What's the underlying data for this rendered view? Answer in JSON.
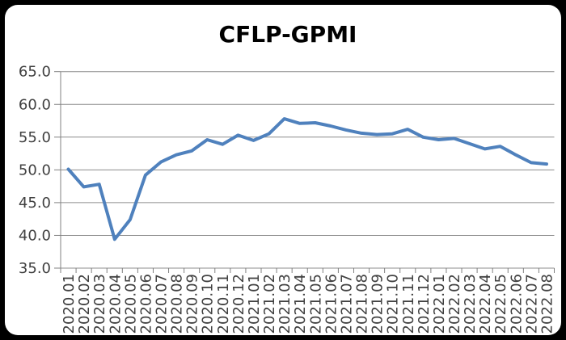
{
  "window": {
    "background_color": "#000000",
    "card_color": "#ffffff"
  },
  "chart_data": {
    "type": "line",
    "title": "CFLP-GPMI",
    "xlabel": "",
    "ylabel": "",
    "ylim": [
      35,
      65
    ],
    "ytick_step": 5,
    "ytick_labels": [
      "35.0",
      "40.0",
      "45.0",
      "50.0",
      "55.0",
      "60.0",
      "65.0"
    ],
    "grid": true,
    "legend_position": "none",
    "categories": [
      "2020.01",
      "2020.02",
      "2020.03",
      "2020.04",
      "2020.05",
      "2020.06",
      "2020.07",
      "2020.08",
      "2020.09",
      "2020.10",
      "2020.11",
      "2020.12",
      "2021.01",
      "2021.02",
      "2021.03",
      "2021.04",
      "2021.05",
      "2021.06",
      "2021.07",
      "2021.08",
      "2021.09",
      "2021.10",
      "2021.11",
      "2021.12",
      "2022.01",
      "2022.02",
      "2022.03",
      "2022.04",
      "2022.05",
      "2022.06",
      "2022.07",
      "2022.08"
    ],
    "series": [
      {
        "name": "CFLP-GPMI",
        "color": "#4F81BD",
        "values": [
          50.1,
          47.4,
          47.8,
          39.4,
          42.4,
          49.2,
          51.2,
          52.3,
          52.9,
          54.6,
          53.9,
          55.3,
          54.5,
          55.5,
          57.8,
          57.1,
          57.2,
          56.7,
          56.1,
          55.6,
          55.4,
          55.5,
          56.2,
          55.0,
          54.6,
          54.8,
          54.0,
          53.2,
          53.6,
          52.3,
          51.1,
          50.9
        ]
      }
    ],
    "colors": {
      "grid": "#8C8C8C",
      "axis": "#808080",
      "tick_label": "#404040"
    }
  }
}
